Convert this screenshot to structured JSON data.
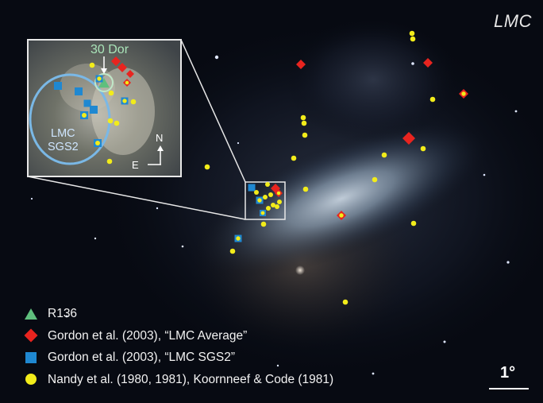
{
  "galaxy_label": "LMC",
  "inset": {
    "feature_label": "30 Dor",
    "region_label": "LMC\nSGS2",
    "compass_north": "N",
    "compass_east": "E"
  },
  "legend": [
    {
      "label": "R136",
      "marker": "green-triangle"
    },
    {
      "label": "Gordon et al. (2003), “LMC Average”",
      "marker": "red-diamond"
    },
    {
      "label": "Gordon et al. (2003), “LMC SGS2”",
      "marker": "blue-square"
    },
    {
      "label": "Nandy et al. (1980, 1981), Koornneef & Code (1981)",
      "marker": "yellow-circle"
    }
  ],
  "scale_bar": {
    "label": "1°"
  },
  "colors": {
    "r136": "#5fbf7d",
    "lmc_average": "#e8241f",
    "lmc_sgs2": "#1f88d1",
    "nandy": "#f2ec1a",
    "sgs2_outline": "#7ab8e6",
    "frame": "#e8e8e8"
  }
}
